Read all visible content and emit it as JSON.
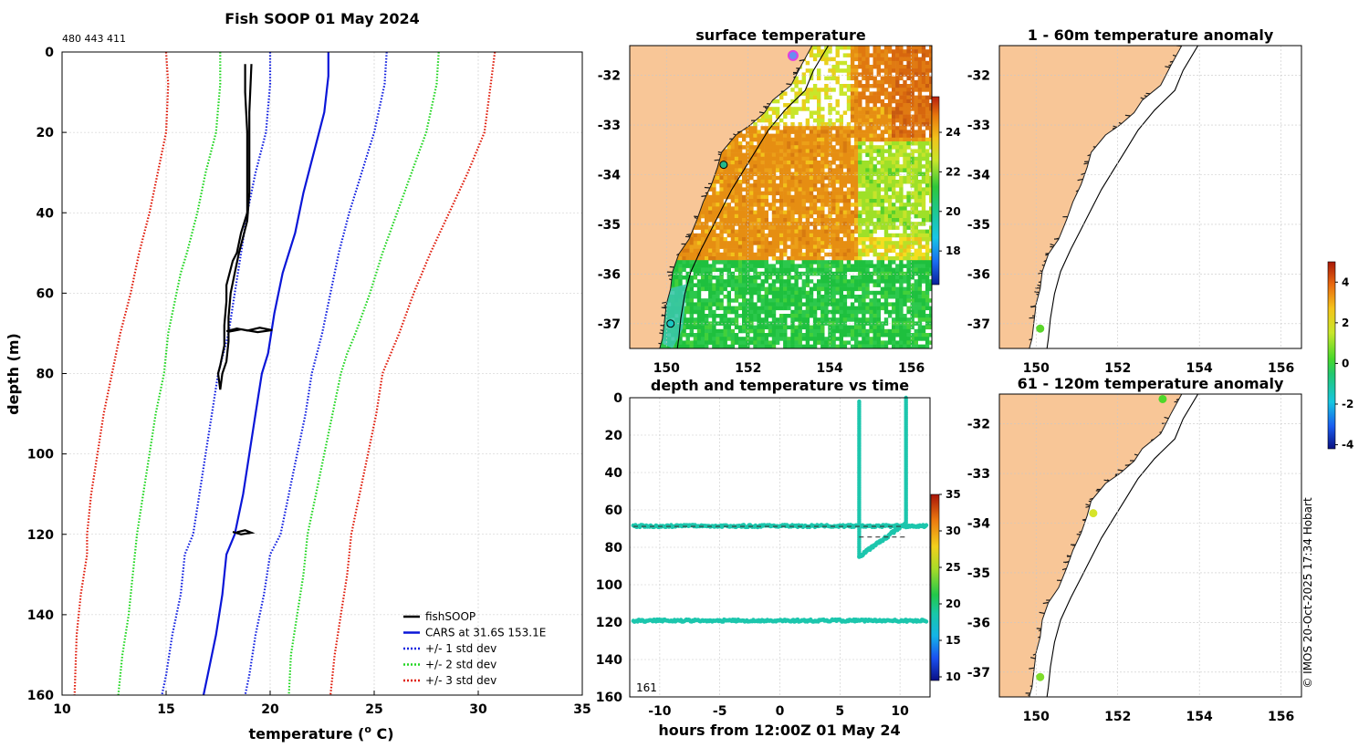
{
  "page_title": "Fish SOOP 01 May 2024",
  "vessel_ids": "480 443 411",
  "copyright": "© IMOS 20-Oct-2025 17:34 Hobart",
  "colors": {
    "fish": "#000000",
    "cars": "#0a16d8",
    "sd1": "#1422e0",
    "sd2": "#22d622",
    "sd3": "#e01e0e",
    "land": "#f8c697",
    "grid": "#c8c8c8",
    "cyan": "#1cc6ad"
  },
  "chart_data": [
    {
      "id": "profile",
      "type": "line",
      "title": "Fish SOOP 01 May 2024",
      "xlabel": "temperature (o C)",
      "ylabel": "depth (m)",
      "xlim": [
        10,
        35
      ],
      "ylim": [
        160,
        0
      ],
      "xticks": [
        10,
        15,
        20,
        25,
        30,
        35
      ],
      "yticks": [
        0,
        20,
        40,
        60,
        80,
        100,
        120,
        140,
        160
      ],
      "legend": [
        "fishSOOP",
        "CARS at 31.6S 153.1E",
        "+/- 1 std dev",
        "+/- 2 std dev",
        "+/- 3 std dev"
      ],
      "series": [
        {
          "name": "CARS at 31.6S 153.1E",
          "style": "solid",
          "color": "cars",
          "points": [
            [
              22.8,
              0
            ],
            [
              22.8,
              6
            ],
            [
              22.6,
              15
            ],
            [
              22.1,
              25
            ],
            [
              21.6,
              35
            ],
            [
              21.2,
              45
            ],
            [
              20.6,
              55
            ],
            [
              20.2,
              65
            ],
            [
              19.9,
              75
            ],
            [
              19.6,
              80
            ],
            [
              19.3,
              90
            ],
            [
              19.0,
              100
            ],
            [
              18.7,
              110
            ],
            [
              18.3,
              120
            ],
            [
              17.9,
              125
            ],
            [
              17.7,
              135
            ],
            [
              17.4,
              145
            ],
            [
              17.0,
              155
            ],
            [
              16.8,
              160
            ]
          ]
        },
        {
          "name": "+/- 1 std dev",
          "style": "dotted",
          "color": "sd1",
          "points": [
            [
              25.6,
              0
            ],
            [
              25.5,
              8
            ],
            [
              25.0,
              20
            ],
            [
              24.4,
              30
            ],
            [
              23.8,
              40
            ],
            [
              23.3,
              50
            ],
            [
              22.9,
              60
            ],
            [
              22.5,
              70
            ],
            [
              22.0,
              80
            ],
            [
              21.7,
              90
            ],
            [
              21.3,
              100
            ],
            [
              20.9,
              110
            ],
            [
              20.5,
              120
            ],
            [
              20.0,
              125
            ],
            [
              19.7,
              135
            ],
            [
              19.3,
              145
            ],
            [
              19.0,
              155
            ],
            [
              18.8,
              160
            ]
          ]
        },
        {
          "name": "+/- 1 std dev",
          "style": "dotted",
          "color": "sd1",
          "points": [
            [
              20.0,
              0
            ],
            [
              20.0,
              8
            ],
            [
              19.8,
              20
            ],
            [
              19.3,
              30
            ],
            [
              18.9,
              40
            ],
            [
              18.6,
              50
            ],
            [
              18.3,
              60
            ],
            [
              18.0,
              70
            ],
            [
              17.5,
              80
            ],
            [
              17.2,
              90
            ],
            [
              16.9,
              100
            ],
            [
              16.6,
              110
            ],
            [
              16.3,
              120
            ],
            [
              15.9,
              125
            ],
            [
              15.7,
              135
            ],
            [
              15.3,
              145
            ],
            [
              15.0,
              155
            ],
            [
              14.8,
              160
            ]
          ]
        },
        {
          "name": "+/- 2 std dev",
          "style": "dotted",
          "color": "sd2",
          "points": [
            [
              28.1,
              0
            ],
            [
              28.0,
              8
            ],
            [
              27.5,
              20
            ],
            [
              26.8,
              30
            ],
            [
              26.1,
              40
            ],
            [
              25.4,
              50
            ],
            [
              24.8,
              60
            ],
            [
              24.1,
              70
            ],
            [
              23.7,
              75
            ],
            [
              23.4,
              80
            ],
            [
              23.0,
              90
            ],
            [
              22.6,
              100
            ],
            [
              22.2,
              110
            ],
            [
              21.8,
              120
            ],
            [
              21.6,
              130
            ],
            [
              21.3,
              140
            ],
            [
              21.0,
              150
            ],
            [
              20.9,
              160
            ]
          ]
        },
        {
          "name": "+/- 2 std dev",
          "style": "dotted",
          "color": "sd2",
          "points": [
            [
              17.6,
              0
            ],
            [
              17.6,
              8
            ],
            [
              17.4,
              20
            ],
            [
              16.9,
              30
            ],
            [
              16.5,
              40
            ],
            [
              16.0,
              50
            ],
            [
              15.7,
              55
            ],
            [
              15.5,
              60
            ],
            [
              15.1,
              70
            ],
            [
              14.9,
              80
            ],
            [
              14.5,
              90
            ],
            [
              14.2,
              100
            ],
            [
              13.9,
              110
            ],
            [
              13.6,
              120
            ],
            [
              13.4,
              130
            ],
            [
              13.2,
              140
            ],
            [
              12.9,
              150
            ],
            [
              12.7,
              160
            ]
          ]
        },
        {
          "name": "+/- 3 std dev",
          "style": "dotted",
          "color": "sd3",
          "points": [
            [
              30.8,
              0
            ],
            [
              30.6,
              8
            ],
            [
              30.3,
              20
            ],
            [
              29.5,
              30
            ],
            [
              28.6,
              40
            ],
            [
              27.7,
              50
            ],
            [
              26.9,
              60
            ],
            [
              26.2,
              70
            ],
            [
              25.8,
              75
            ],
            [
              25.4,
              80
            ],
            [
              25.1,
              90
            ],
            [
              24.7,
              100
            ],
            [
              24.3,
              110
            ],
            [
              23.9,
              120
            ],
            [
              23.7,
              130
            ],
            [
              23.4,
              140
            ],
            [
              23.1,
              150
            ],
            [
              22.9,
              160
            ]
          ]
        },
        {
          "name": "+/- 3 std dev",
          "style": "dotted",
          "color": "sd3",
          "points": [
            [
              15.0,
              0
            ],
            [
              15.1,
              8
            ],
            [
              15.0,
              20
            ],
            [
              14.6,
              30
            ],
            [
              14.2,
              40
            ],
            [
              13.7,
              50
            ],
            [
              13.5,
              55
            ],
            [
              13.3,
              60
            ],
            [
              12.8,
              70
            ],
            [
              12.4,
              80
            ],
            [
              12.0,
              90
            ],
            [
              11.7,
              100
            ],
            [
              11.4,
              110
            ],
            [
              11.2,
              120
            ],
            [
              11.2,
              125
            ],
            [
              10.9,
              135
            ],
            [
              10.7,
              145
            ],
            [
              10.6,
              160
            ]
          ]
        },
        {
          "name": "fishSOOP",
          "style": "solid",
          "color": "fish",
          "points": [
            [
              18.8,
              3
            ],
            [
              18.8,
              10
            ],
            [
              18.9,
              20
            ],
            [
              18.9,
              30
            ],
            [
              18.9,
              40
            ],
            [
              18.6,
              45
            ],
            [
              18.4,
              50
            ],
            [
              18.2,
              52
            ],
            [
              17.9,
              58
            ],
            [
              17.9,
              62
            ],
            [
              17.8,
              68
            ],
            [
              17.8,
              73
            ],
            [
              17.6,
              78
            ],
            [
              17.5,
              80
            ],
            [
              17.6,
              84
            ],
            [
              17.7,
              80
            ],
            [
              17.9,
              77
            ],
            [
              18.0,
              72
            ],
            [
              18.0,
              66
            ],
            [
              18.1,
              60
            ],
            [
              18.3,
              55
            ],
            [
              18.5,
              50
            ],
            [
              18.7,
              46
            ],
            [
              18.9,
              42
            ],
            [
              19.0,
              35
            ],
            [
              19.0,
              25
            ],
            [
              19.0,
              15
            ],
            [
              19.1,
              3
            ]
          ]
        },
        {
          "name": "fishSOOP",
          "style": "solid",
          "color": "fish",
          "points": [
            [
              17.9,
              69.5
            ],
            [
              18.4,
              68.8
            ],
            [
              18.9,
              69.3
            ],
            [
              19.5,
              68.6
            ],
            [
              20.1,
              69.2
            ],
            [
              19.4,
              69.7
            ],
            [
              18.6,
              69.0
            ],
            [
              18.0,
              69.6
            ]
          ]
        },
        {
          "name": "fishSOOP",
          "style": "solid",
          "color": "fish",
          "points": [
            [
              18.4,
              119.5
            ],
            [
              18.8,
              119.0
            ],
            [
              19.1,
              119.6
            ],
            [
              18.6,
              120.0
            ],
            [
              18.2,
              119.4
            ]
          ]
        }
      ]
    },
    {
      "id": "sst",
      "type": "heatmap",
      "title": "surface temperature",
      "xlim": [
        149.1,
        156.5
      ],
      "ylim": [
        -37.5,
        -31.4
      ],
      "xticks": [
        150,
        152,
        154,
        156
      ],
      "yticks": [
        -32,
        -33,
        -34,
        -35,
        -36,
        -37
      ],
      "colorbar": {
        "range": [
          16.3,
          25.8
        ],
        "ticks": [
          18,
          20,
          22,
          24
        ]
      },
      "markers": [
        {
          "lon": 153.1,
          "lat": -31.6
        },
        {
          "lon": 151.4,
          "lat": -33.8
        },
        {
          "lon": 150.1,
          "lat": -37.0
        }
      ]
    },
    {
      "id": "anom1",
      "type": "heatmap",
      "title": "1 - 60m temperature anomaly",
      "xlim": [
        149.1,
        156.5
      ],
      "ylim": [
        -37.5,
        -31.4
      ],
      "xticks": [
        150,
        152,
        154,
        156
      ],
      "yticks": [
        -32,
        -33,
        -34,
        -35,
        -36,
        -37
      ],
      "markers": [
        {
          "lon": 150.1,
          "lat": -37.1,
          "value": 0.3
        }
      ]
    },
    {
      "id": "anom2",
      "type": "heatmap",
      "title": "61 - 120m temperature anomaly",
      "xlim": [
        149.1,
        156.5
      ],
      "ylim": [
        -37.5,
        -31.4
      ],
      "xticks": [
        150,
        152,
        154,
        156
      ],
      "yticks": [
        -32,
        -33,
        -34,
        -35,
        -36,
        -37
      ],
      "colorbar": {
        "range": [
          -4.2,
          5.0
        ],
        "ticks": [
          4,
          2,
          0,
          -2,
          -4
        ]
      },
      "markers": [
        {
          "lon": 153.1,
          "lat": -31.5,
          "value": 0.4
        },
        {
          "lon": 151.4,
          "lat": -33.8,
          "value": 2.0
        },
        {
          "lon": 150.1,
          "lat": -37.1,
          "value": 1.2
        }
      ]
    },
    {
      "id": "timeseries",
      "type": "scatter",
      "title": "depth and temperature vs time",
      "xlabel": "hours from 12:00Z 01 May 24",
      "xlim": [
        -12.5,
        12.5
      ],
      "ylim": [
        160,
        0
      ],
      "xticks": [
        -10,
        -5,
        0,
        5,
        10
      ],
      "yticks": [
        0,
        20,
        40,
        60,
        80,
        100,
        120,
        140,
        160
      ],
      "annotation": "161",
      "colorbar": {
        "range": [
          9.5,
          35
        ],
        "ticks": [
          35,
          30,
          25,
          20,
          15,
          10
        ]
      }
    }
  ]
}
